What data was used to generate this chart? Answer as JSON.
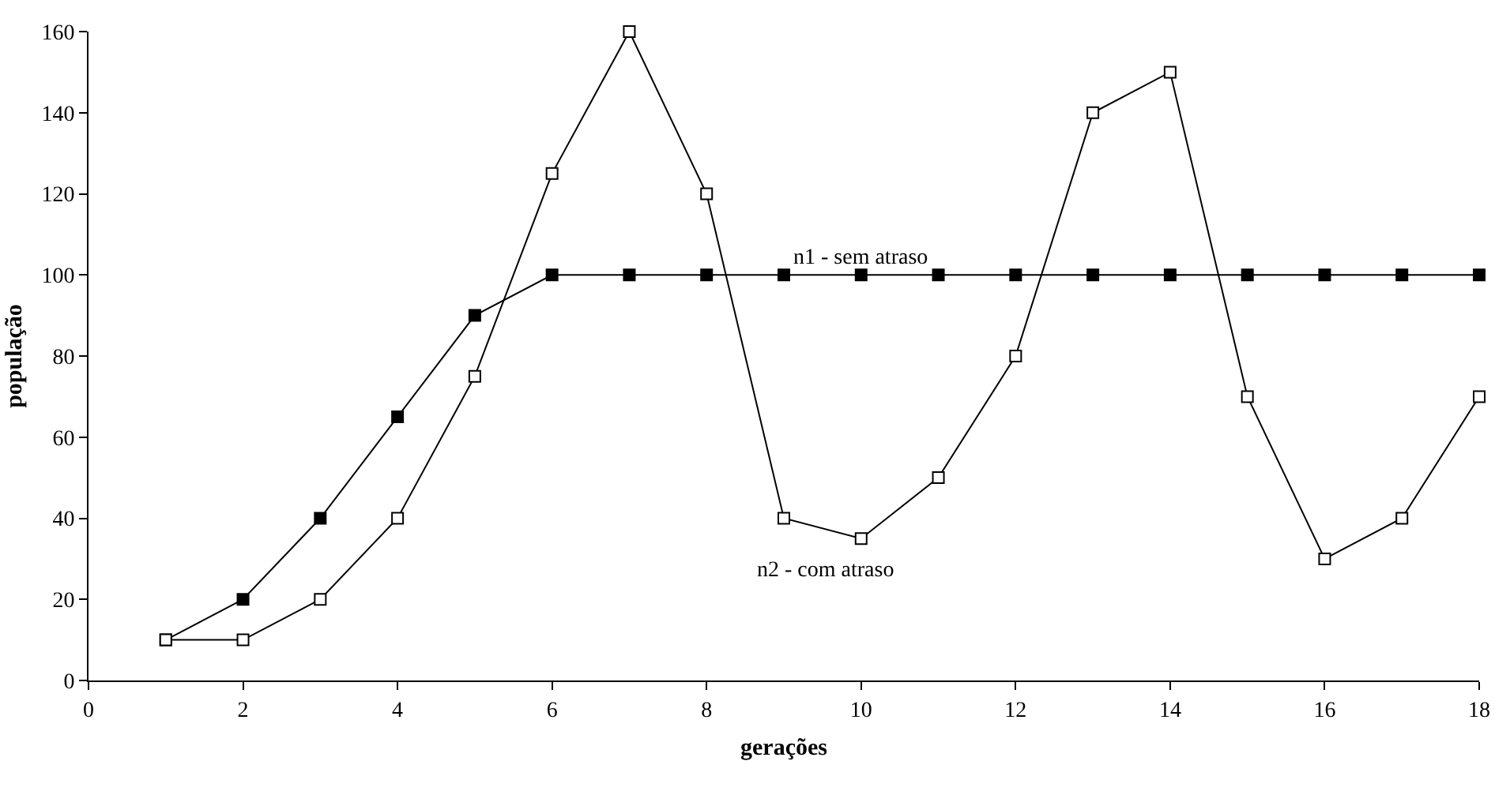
{
  "chart_data": {
    "type": "line",
    "xlabel": "gerações",
    "ylabel": "população",
    "x": [
      1,
      2,
      3,
      4,
      5,
      6,
      7,
      8,
      9,
      10,
      11,
      12,
      13,
      14,
      15,
      16,
      17,
      18
    ],
    "series": [
      {
        "name": "n1 - sem atraso",
        "color": "#000000",
        "values": [
          10,
          20,
          40,
          65,
          90,
          100,
          100,
          100,
          100,
          100,
          100,
          100,
          100,
          100,
          100,
          100,
          100,
          100
        ]
      },
      {
        "name": "n2 - com atraso",
        "color": "#000000",
        "values": [
          10,
          10,
          20,
          40,
          75,
          125,
          160,
          120,
          40,
          35,
          50,
          80,
          140,
          150,
          70,
          30,
          40,
          70
        ]
      }
    ],
    "xlim": [
      0,
      18
    ],
    "xticks": [
      0,
      2,
      4,
      6,
      8,
      10,
      12,
      14,
      16,
      18
    ],
    "ylim": [
      0,
      160
    ],
    "yticks": [
      0,
      20,
      40,
      60,
      80,
      100,
      120,
      140,
      160
    ],
    "grid": false,
    "legend": false,
    "marker": "square",
    "line_style": "solid"
  }
}
